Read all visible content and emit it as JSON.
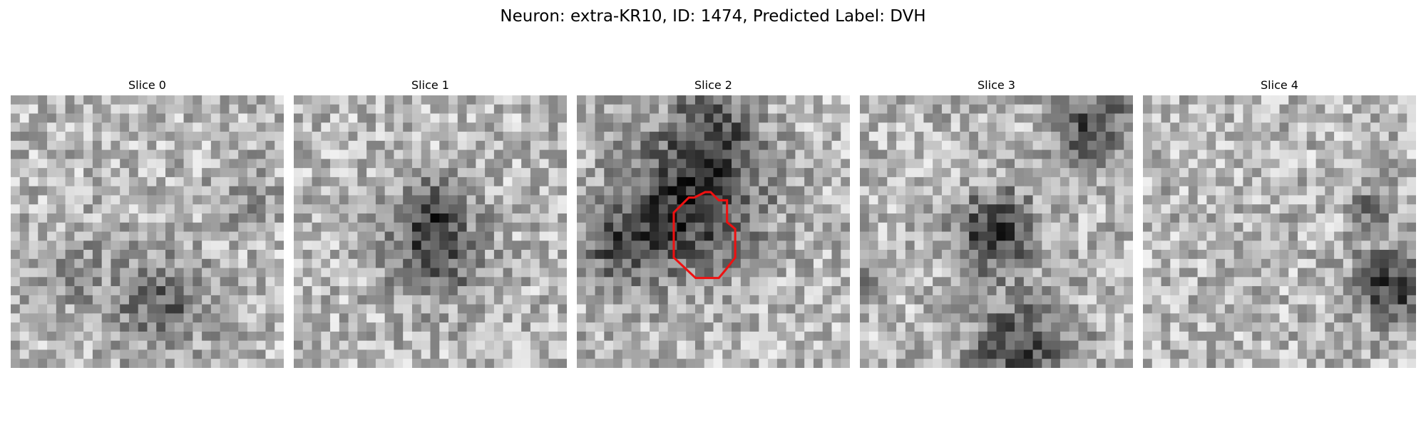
{
  "figure": {
    "title": "Neuron: extra-KR10, ID: 1474, Predicted Label: DVH"
  },
  "panels": [
    {
      "title": "Slice 0",
      "seed": 11,
      "blobs": [
        [
          0.55,
          0.75,
          0.12,
          0.35
        ],
        [
          0.2,
          0.65,
          0.1,
          0.2
        ],
        [
          0.85,
          0.35,
          0.08,
          0.15
        ]
      ],
      "has_contour": false
    },
    {
      "title": "Slice 1",
      "seed": 23,
      "blobs": [
        [
          0.52,
          0.58,
          0.12,
          0.4
        ],
        [
          0.5,
          0.42,
          0.08,
          0.3
        ]
      ],
      "has_contour": false
    },
    {
      "title": "Slice 2",
      "seed": 37,
      "blobs": [
        [
          0.42,
          0.38,
          0.18,
          0.55
        ],
        [
          0.15,
          0.55,
          0.1,
          0.35
        ],
        [
          0.5,
          0.1,
          0.1,
          0.3
        ]
      ],
      "has_contour": true
    },
    {
      "title": "Slice 3",
      "seed": 49,
      "blobs": [
        [
          0.5,
          0.5,
          0.1,
          0.55
        ],
        [
          0.85,
          0.12,
          0.1,
          0.45
        ],
        [
          0.6,
          0.93,
          0.13,
          0.45
        ],
        [
          0.05,
          0.65,
          0.05,
          0.25
        ]
      ],
      "has_contour": false
    },
    {
      "title": "Slice 4",
      "seed": 61,
      "blobs": [
        [
          0.92,
          0.7,
          0.1,
          0.5
        ],
        [
          0.85,
          0.4,
          0.06,
          0.25
        ]
      ],
      "has_contour": false
    }
  ],
  "contour": {
    "color": "#ee1111",
    "points": [
      [
        0.355,
        0.43
      ],
      [
        0.41,
        0.375
      ],
      [
        0.43,
        0.375
      ],
      [
        0.47,
        0.355
      ],
      [
        0.49,
        0.355
      ],
      [
        0.52,
        0.385
      ],
      [
        0.55,
        0.385
      ],
      [
        0.55,
        0.465
      ],
      [
        0.58,
        0.49
      ],
      [
        0.58,
        0.595
      ],
      [
        0.545,
        0.64
      ],
      [
        0.52,
        0.67
      ],
      [
        0.435,
        0.67
      ],
      [
        0.355,
        0.595
      ]
    ]
  }
}
